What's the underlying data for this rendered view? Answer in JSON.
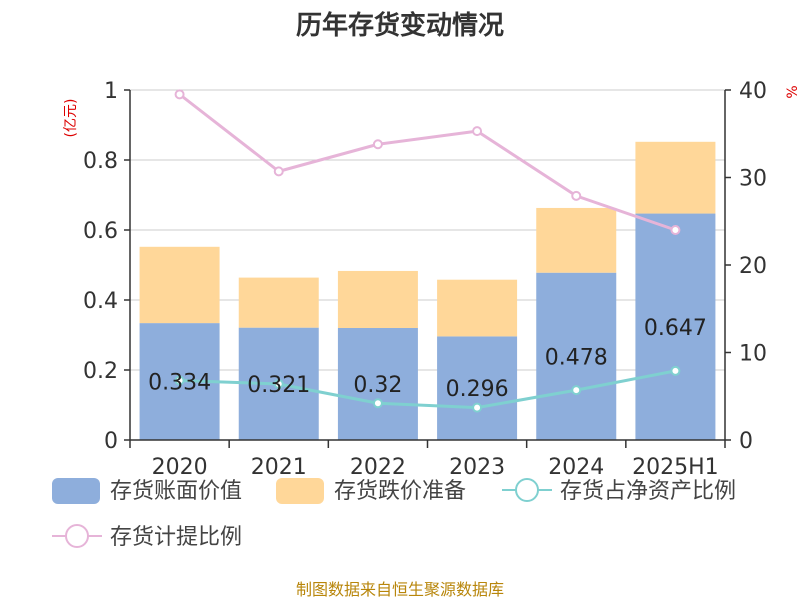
{
  "title": "历年存货变动情况",
  "source": "制图数据来自恒生聚源数据库",
  "colors": {
    "book_value": "#8eaedc",
    "reserve": "#ffd799",
    "net_asset_ratio": "#7fd0d0",
    "provision_ratio": "#e6b4d8",
    "axis": "#333333",
    "grid": "#cccccc",
    "unit_label": "#dd0000",
    "source": "#b8860b"
  },
  "chart_data": {
    "type": "bar",
    "stacked": true,
    "title": "历年存货变动情况",
    "categories": [
      "2020",
      "2021",
      "2022",
      "2023",
      "2024",
      "2025H1"
    ],
    "y_left": {
      "unit": "(亿元)",
      "ylim": [
        0,
        1
      ],
      "ticks": [
        "0",
        "0.2",
        "0.4",
        "0.6",
        "0.8",
        "1"
      ],
      "tick_values": [
        0,
        0.2,
        0.4,
        0.6,
        0.8,
        1
      ]
    },
    "y_right": {
      "unit": "%",
      "ylim": [
        0,
        40
      ],
      "ticks": [
        "0",
        "10",
        "20",
        "30",
        "40"
      ],
      "tick_values": [
        0,
        10,
        20,
        30,
        40
      ]
    },
    "grid": true,
    "legend_position": "bottom",
    "series": [
      {
        "name": "存货账面价值",
        "kind": "bar",
        "axis": "left",
        "values": [
          0.334,
          0.321,
          0.32,
          0.296,
          0.478,
          0.647
        ],
        "labels": [
          "0.334",
          "0.321",
          "0.32",
          "0.296",
          "0.478",
          "0.647"
        ]
      },
      {
        "name": "存货跌价准备",
        "kind": "bar",
        "axis": "left",
        "values": [
          0.218,
          0.143,
          0.163,
          0.162,
          0.185,
          0.205
        ]
      },
      {
        "name": "存货占净资产比例",
        "kind": "line",
        "axis": "right",
        "values": [
          6.8,
          6.4,
          4.2,
          3.7,
          5.7,
          7.9
        ]
      },
      {
        "name": "存货计提比例",
        "kind": "line",
        "axis": "right",
        "values": [
          39.5,
          30.7,
          33.8,
          35.3,
          27.9,
          24.0
        ]
      }
    ]
  }
}
